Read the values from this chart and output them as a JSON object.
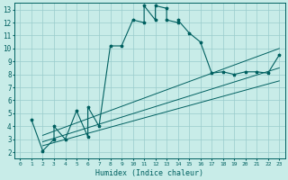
{
  "title": "",
  "xlabel": "Humidex (Indice chaleur)",
  "bg_color": "#c8ece8",
  "line_color": "#006060",
  "grid_color": "#99cccc",
  "xlim": [
    -0.5,
    23.5
  ],
  "ylim": [
    1.5,
    13.5
  ],
  "xticks": [
    0,
    1,
    2,
    3,
    4,
    5,
    6,
    7,
    8,
    9,
    10,
    11,
    12,
    13,
    14,
    15,
    16,
    17,
    18,
    19,
    20,
    21,
    22,
    23
  ],
  "yticks": [
    2,
    3,
    4,
    5,
    6,
    7,
    8,
    9,
    10,
    11,
    12,
    13
  ],
  "curve_x": [
    1,
    2,
    3,
    3,
    4,
    5,
    6,
    6,
    7,
    8,
    9,
    10,
    11,
    11,
    12,
    12,
    13,
    13,
    14,
    14,
    15,
    16,
    17,
    18,
    19,
    20,
    21,
    22,
    23
  ],
  "curve_y": [
    4.5,
    2.1,
    3.0,
    4.0,
    3.0,
    5.2,
    3.2,
    5.5,
    4.0,
    10.2,
    10.2,
    12.2,
    12.0,
    13.3,
    12.2,
    13.3,
    13.1,
    12.2,
    12.0,
    12.2,
    11.2,
    10.5,
    8.1,
    8.2,
    8.0,
    8.2,
    8.2,
    8.1,
    9.5
  ],
  "line1_x": [
    2,
    23
  ],
  "line1_y": [
    2.5,
    7.5
  ],
  "line2_x": [
    2,
    23
  ],
  "line2_y": [
    3.3,
    10.0
  ],
  "line3_x": [
    2,
    23
  ],
  "line3_y": [
    2.8,
    8.5
  ],
  "figsize": [
    3.2,
    2.0
  ],
  "dpi": 100
}
